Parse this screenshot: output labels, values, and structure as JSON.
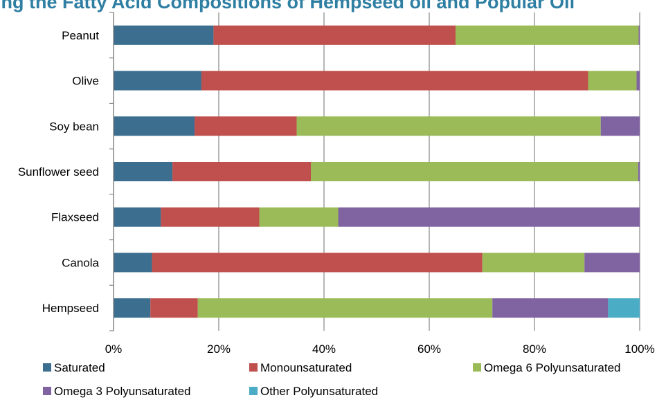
{
  "chart_data": {
    "type": "bar",
    "orientation": "horizontal",
    "stacked": "percent",
    "title": "ing the Fatty Acid Compositions of Hempseed oil and Popular Oil",
    "categories": [
      "Peanut",
      "Olive",
      "Soy bean",
      "Sunflower seed",
      "Flaxseed",
      "Canola",
      "Hempseed"
    ],
    "series": [
      {
        "name": "Saturated",
        "color": "#3B6E8F",
        "values": [
          19,
          16.7,
          15.4,
          11.2,
          9,
          7.3,
          7
        ]
      },
      {
        "name": "Monounsaturated",
        "color": "#C0504D",
        "values": [
          46,
          73.5,
          19.4,
          26.3,
          18.7,
          62.8,
          9
        ]
      },
      {
        "name": "Omega 6 Polyunsaturated",
        "color": "#9BBB59",
        "values": [
          34.8,
          9.2,
          57.8,
          62.2,
          15,
          19.4,
          56
        ]
      },
      {
        "name": "Omega 3 Polyunsaturated",
        "color": "#8064A2",
        "values": [
          0.2,
          0.6,
          7.4,
          0.3,
          57.3,
          10.5,
          22
        ]
      },
      {
        "name": "Other Polyunsaturated",
        "color": "#4BACC6",
        "values": [
          0,
          0,
          0,
          0,
          0,
          0,
          6
        ]
      }
    ],
    "xlim": [
      0,
      100
    ],
    "x_ticks": [
      "0%",
      "20%",
      "40%",
      "60%",
      "80%",
      "100%"
    ],
    "grid": true,
    "legend_position": "bottom",
    "colors": {
      "title": "#2F7FA3",
      "grid": "#868686",
      "axis": "#868686"
    }
  }
}
